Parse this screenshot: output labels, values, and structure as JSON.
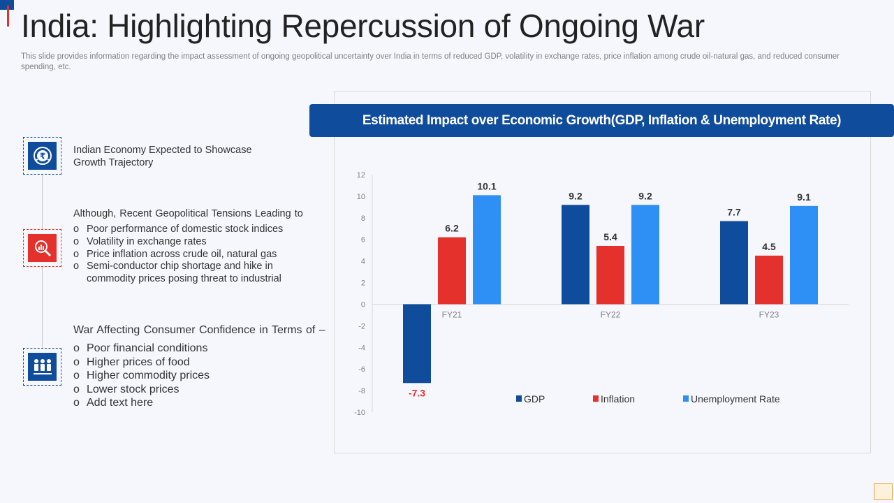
{
  "header": {
    "title": "India: Highlighting Repercussion of Ongoing War",
    "subtitle": "This slide provides information regarding the impact assessment of ongoing geopolitical uncertainty over India in terms of reduced GDP, volatility in exchange rates, price inflation among crude oil-natural gas, and reduced consumer spending, etc."
  },
  "left": {
    "block1": {
      "text": "Indian Economy Expected to Showcase Growth Trajectory",
      "icon": "rupee-globe-icon"
    },
    "block2": {
      "heading": "Although, Recent Geopolitical Tensions Leading to",
      "icon": "chart-magnifier-icon",
      "items": [
        "Poor performance of domestic stock indices",
        "Volatility in exchange rates",
        "Price inflation across crude oil, natural gas",
        "Semi-conductor chip shortage and hike in commodity prices posing threat to industrial"
      ]
    },
    "block3": {
      "heading": "War Affecting Consumer Confidence in Terms of –",
      "icon": "people-group-icon",
      "items": [
        "Poor financial conditions",
        "Higher prices of food",
        "Higher commodity prices",
        "Lower stock prices",
        "Add text here"
      ]
    }
  },
  "chart_banner": "Estimated Impact over Economic Growth(GDP, Inflation & Unemployment Rate)",
  "colors": {
    "primary_blue": "#0f4c9c",
    "red": "#e5312b",
    "light_blue": "#2e90f5"
  },
  "chart_data": {
    "type": "bar",
    "title": "Estimated Impact over Economic Growth(GDP, Inflation & Unemployment Rate)",
    "categories": [
      "FY21",
      "FY22",
      "FY23"
    ],
    "series": [
      {
        "name": "GDP",
        "values": [
          -7.3,
          9.2,
          7.7
        ],
        "color": "#0f4c9c"
      },
      {
        "name": "Inflation",
        "values": [
          6.2,
          5.4,
          4.5
        ],
        "color": "#e5312b"
      },
      {
        "name": "Unemployment Rate",
        "values": [
          10.1,
          9.2,
          9.1
        ],
        "color": "#2e90f5"
      }
    ],
    "ylim": [
      -10,
      12
    ],
    "yticks": [
      12,
      10,
      8,
      6,
      4,
      2,
      0,
      -2,
      -4,
      -6,
      -8,
      -10
    ],
    "grid": false,
    "legend": "bottom"
  }
}
